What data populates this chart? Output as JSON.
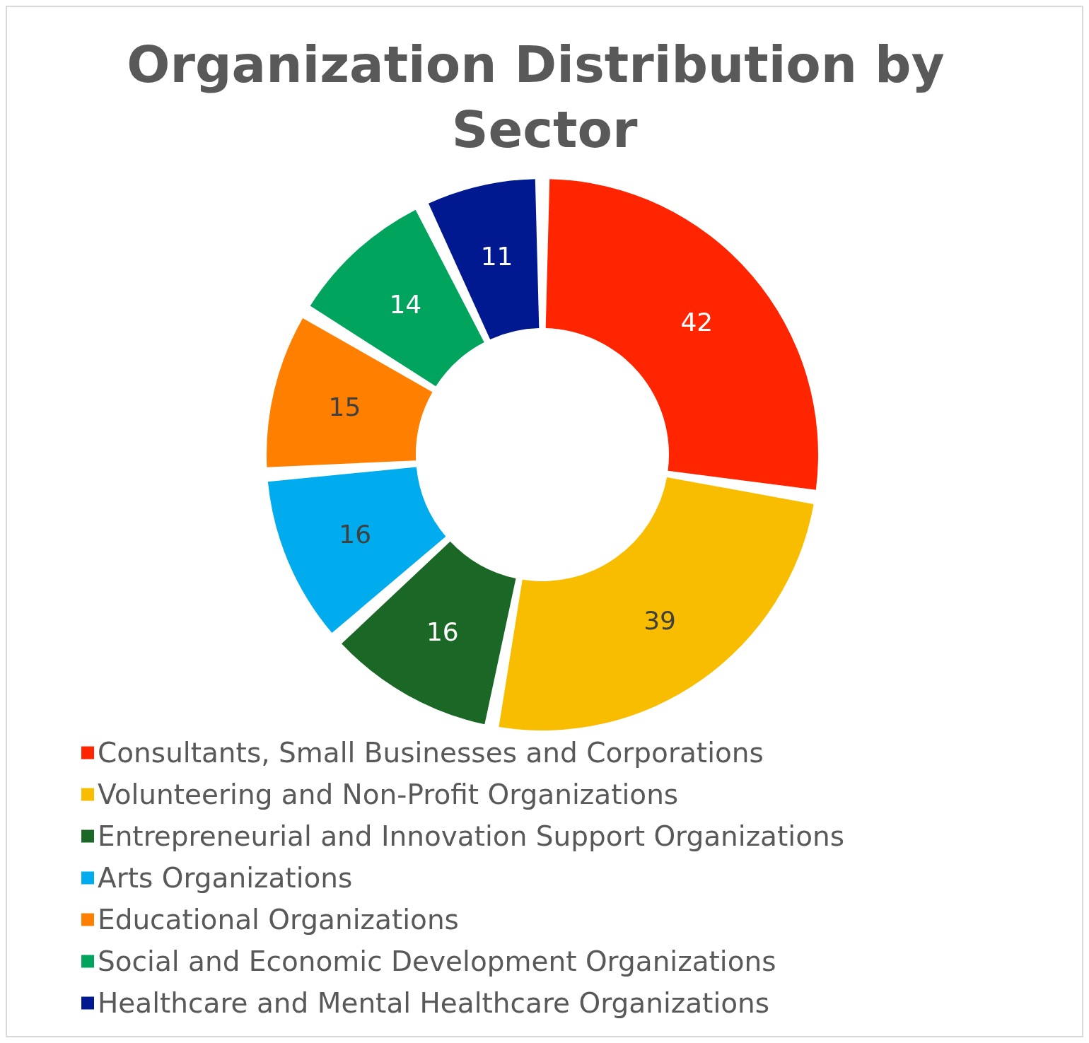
{
  "chart_data": {
    "type": "donut",
    "title": "Organization Distribution by Sector",
    "categories": [
      "Consultants, Small Businesses and Corporations",
      "Volunteering and Non-Profit Organizations",
      "Entrepreneurial and Innovation Support Organizations",
      "Arts Organizations",
      "Educational Organizations",
      "Social and Economic Development Organizations",
      "Healthcare and Mental Healthcare Organizations"
    ],
    "values": [
      42,
      39,
      16,
      16,
      15,
      14,
      11
    ],
    "colors": [
      "#ff2500",
      "#f9bd00",
      "#1b6726",
      "#00aced",
      "#ff8000",
      "#00a45c",
      "#001890"
    ],
    "data_labels": true,
    "legend": "bottom"
  }
}
